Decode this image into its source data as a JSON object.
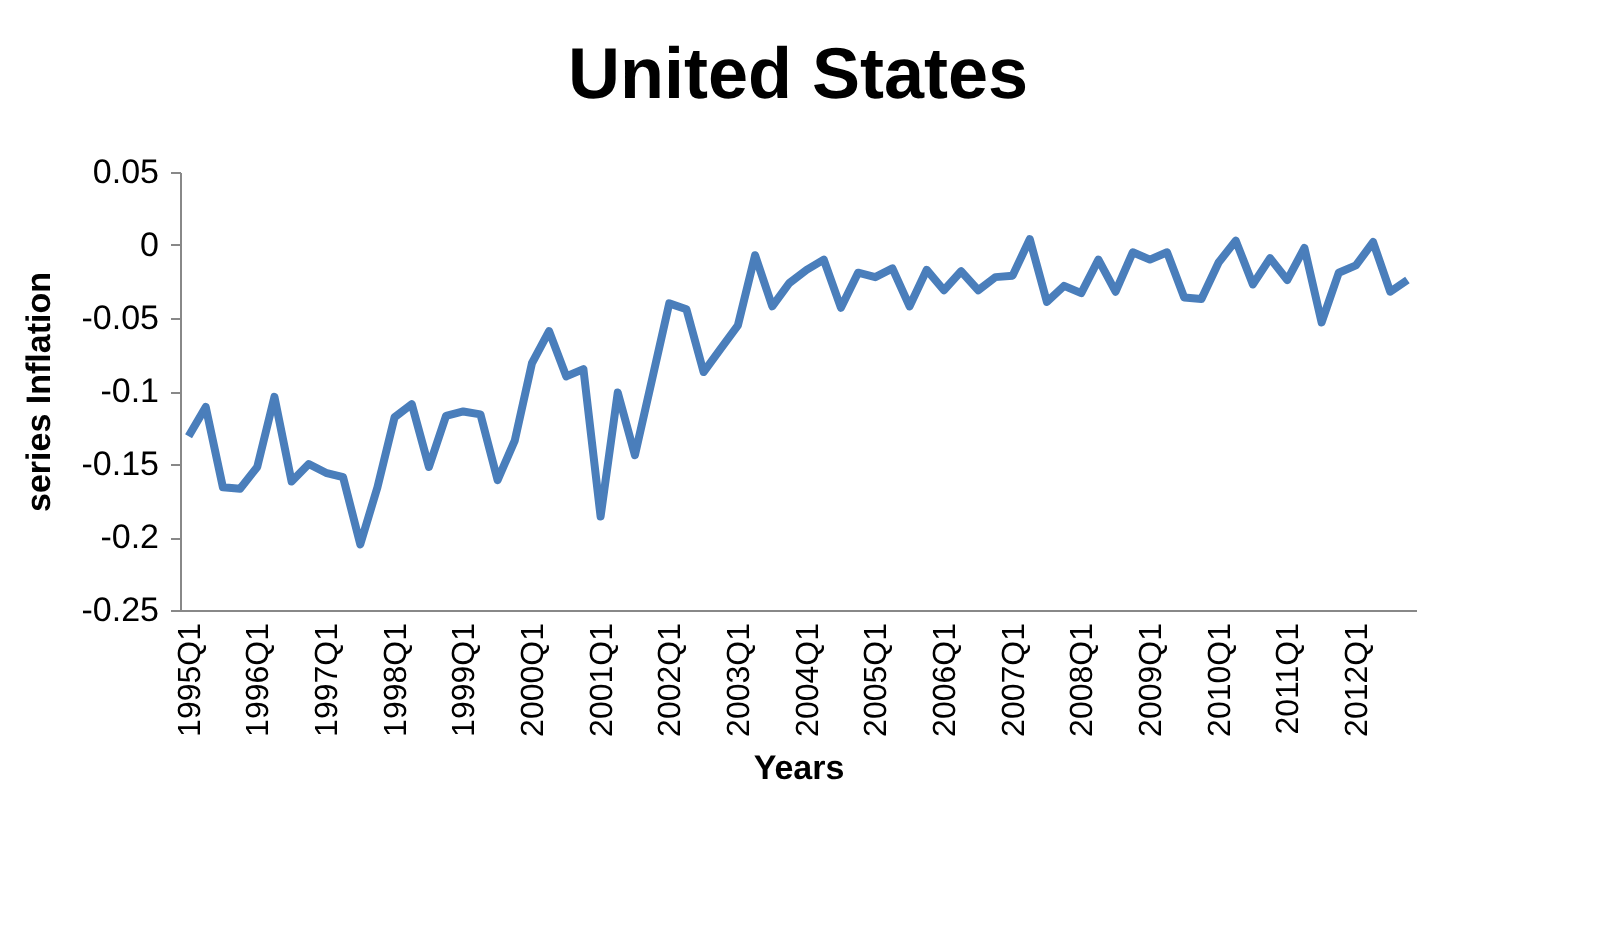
{
  "chart_data": {
    "type": "line",
    "title": "United States",
    "xlabel": "Years",
    "ylabel": "series Inflation",
    "categories": [
      "1995Q1",
      null,
      null,
      null,
      "1996Q1",
      null,
      null,
      null,
      "1997Q1",
      null,
      null,
      null,
      "1998Q1",
      null,
      null,
      null,
      "1999Q1",
      null,
      null,
      null,
      "2000Q1",
      null,
      null,
      null,
      "2001Q1",
      null,
      null,
      null,
      "2002Q1",
      null,
      null,
      null,
      "2003Q1",
      null,
      null,
      null,
      "2004Q1",
      null,
      null,
      null,
      "2005Q1",
      null,
      null,
      null,
      "2006Q1",
      null,
      null,
      null,
      "2007Q1",
      null,
      null,
      null,
      "2008Q1",
      null,
      null,
      null,
      "2009Q1",
      null,
      null,
      null,
      "2010Q1",
      null,
      null,
      null,
      "2011Q1",
      null,
      null,
      null,
      "2012Q1",
      null,
      null,
      null
    ],
    "series": [
      {
        "color": "#4a7ebb",
        "values": [
          -0.131,
          -0.111,
          -0.166,
          -0.167,
          -0.152,
          -0.104,
          -0.162,
          -0.15,
          -0.156,
          -0.159,
          -0.205,
          -0.166,
          -0.118,
          -0.109,
          -0.152,
          -0.117,
          -0.114,
          -0.116,
          -0.161,
          -0.134,
          -0.081,
          -0.059,
          -0.09,
          -0.085,
          -0.186,
          -0.101,
          -0.144,
          -0.092,
          -0.04,
          -0.044,
          -0.087,
          -0.071,
          -0.055,
          -0.007,
          -0.042,
          -0.026,
          -0.017,
          -0.01,
          -0.043,
          -0.019,
          -0.022,
          -0.016,
          -0.042,
          -0.017,
          -0.031,
          -0.018,
          -0.031,
          -0.022,
          -0.021,
          0.004,
          -0.039,
          -0.028,
          -0.033,
          -0.01,
          -0.032,
          -0.005,
          -0.01,
          -0.005,
          -0.036,
          -0.037,
          -0.012,
          0.003,
          -0.027,
          -0.009,
          -0.024,
          -0.002,
          -0.053,
          -0.019,
          -0.014,
          0.002,
          -0.032,
          -0.024
        ]
      }
    ],
    "ylim": [
      -0.25,
      0.05
    ],
    "yticks": [
      0.05,
      0,
      -0.05,
      -0.1,
      -0.15,
      -0.2,
      -0.25
    ],
    "grid": false,
    "legend": false,
    "marker": "none",
    "line_style": "solid"
  }
}
